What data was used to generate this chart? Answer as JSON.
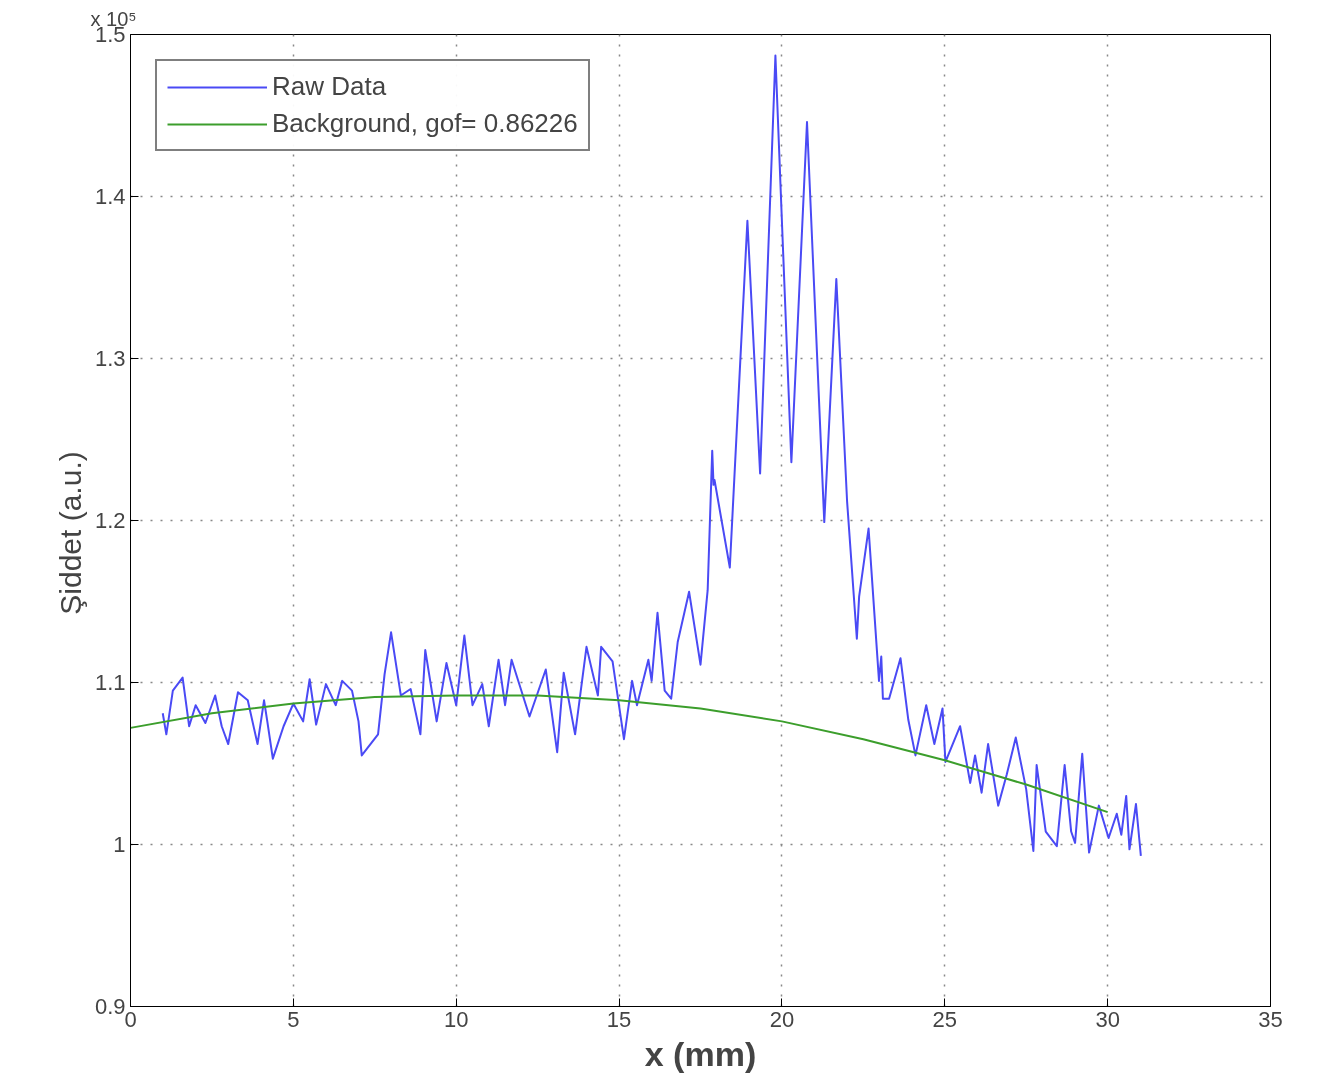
{
  "chart_data": {
    "type": "line",
    "xlabel": "x (mm)",
    "ylabel": "Şiddet    (a.u.)",
    "annotations": [
      "x 10⁵"
    ],
    "xlim": [
      0,
      35
    ],
    "xticks": [
      0,
      5,
      10,
      15,
      20,
      25,
      30,
      35
    ],
    "ylim": [
      0.9,
      1.5
    ],
    "yticks": [
      0.9,
      1,
      1.1,
      1.2,
      1.3,
      1.4,
      1.5
    ],
    "grid": true,
    "legend": "top left",
    "marker": "none",
    "line_style": "solid",
    "series": [
      {
        "name": "Raw Data",
        "color": "#4a4af5",
        "x": [
          0.99,
          1.1,
          1.3,
          1.6,
          1.8,
          2.0,
          2.3,
          2.6,
          2.8,
          3.0,
          3.3,
          3.6,
          3.9,
          4.1,
          4.2,
          4.37,
          4.7,
          5.0,
          5.3,
          5.5,
          5.7,
          6.0,
          6.3,
          6.5,
          6.8,
          7.0,
          7.1,
          7.6,
          7.8,
          8.0,
          8.3,
          8.6,
          8.9,
          9.05,
          9.4,
          9.7,
          10.0,
          10.25,
          10.5,
          10.8,
          11.0,
          11.3,
          11.5,
          11.7,
          12.25,
          12.75,
          13.1,
          13.3,
          13.65,
          14.0,
          14.35,
          14.45,
          14.8,
          15.15,
          15.4,
          15.55,
          15.9,
          16.0,
          16.18,
          16.4,
          16.6,
          16.8,
          17.15,
          17.5,
          17.72,
          17.86,
          17.9,
          17.93,
          18.4,
          18.94,
          19.33,
          19.8,
          20.29,
          20.77,
          21.3,
          21.67,
          22.0,
          22.3,
          22.37,
          22.66,
          22.98,
          23.05,
          23.1,
          23.29,
          23.64,
          23.88,
          24.1,
          24.43,
          24.68,
          24.93,
          25.02,
          25.47,
          25.78,
          25.93,
          26.13,
          26.33,
          26.64,
          26.9,
          27.18,
          27.5,
          27.72,
          27.82,
          28.1,
          28.44,
          28.68,
          28.88,
          29.0,
          29.22,
          29.43,
          29.73,
          30.03,
          30.28,
          30.42,
          30.57,
          30.67,
          30.87,
          31.02
        ],
        "values": [
          1.081,
          1.068,
          1.095,
          1.103,
          1.073,
          1.086,
          1.075,
          1.092,
          1.073,
          1.062,
          1.094,
          1.089,
          1.062,
          1.089,
          1.076,
          1.053,
          1.073,
          1.087,
          1.076,
          1.102,
          1.074,
          1.099,
          1.086,
          1.101,
          1.095,
          1.076,
          1.055,
          1.068,
          1.105,
          1.131,
          1.092,
          1.096,
          1.068,
          1.12,
          1.076,
          1.112,
          1.086,
          1.129,
          1.086,
          1.099,
          1.073,
          1.114,
          1.086,
          1.114,
          1.079,
          1.108,
          1.057,
          1.106,
          1.068,
          1.122,
          1.092,
          1.122,
          1.113,
          1.065,
          1.101,
          1.086,
          1.114,
          1.101,
          1.143,
          1.095,
          1.09,
          1.125,
          1.156,
          1.111,
          1.157,
          1.243,
          1.222,
          1.225,
          1.171,
          1.385,
          1.229,
          1.487,
          1.236,
          1.446,
          1.199,
          1.349,
          1.212,
          1.127,
          1.153,
          1.195,
          1.101,
          1.116,
          1.09,
          1.09,
          1.115,
          1.077,
          1.055,
          1.086,
          1.062,
          1.084,
          1.051,
          1.073,
          1.038,
          1.055,
          1.032,
          1.062,
          1.024,
          1.043,
          1.066,
          1.034,
          0.996,
          1.049,
          1.008,
          0.999,
          1.049,
          1.008,
          1.001,
          1.056,
          0.995,
          1.024,
          1.004,
          1.019,
          1.006,
          1.03,
          0.997,
          1.025,
          0.993
        ]
      },
      {
        "name": "Background, gof= 0.86226",
        "color": "#3c9e2c",
        "x": [
          0,
          2.5,
          5,
          7.5,
          10,
          12.5,
          15,
          17.5,
          20,
          22.5,
          25,
          27.5,
          30
        ],
        "values": [
          1.072,
          1.081,
          1.087,
          1.091,
          1.092,
          1.092,
          1.089,
          1.084,
          1.076,
          1.065,
          1.052,
          1.037,
          1.02
        ]
      }
    ]
  }
}
